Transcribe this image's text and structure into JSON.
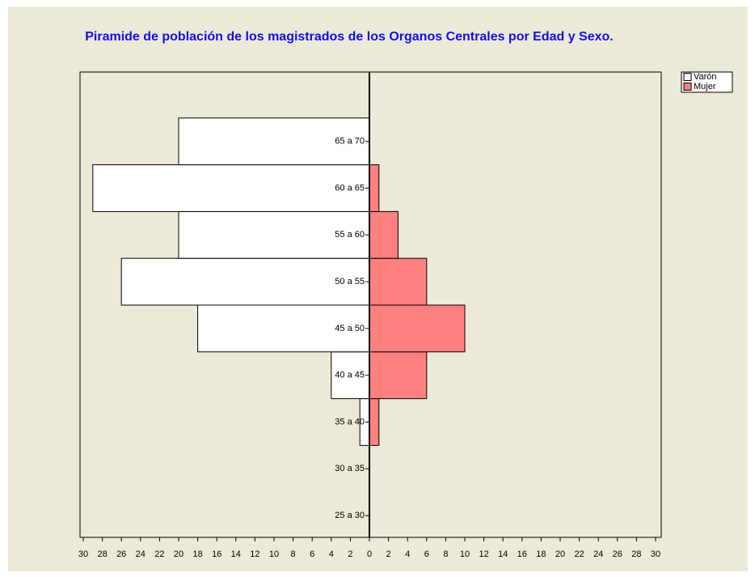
{
  "chart_data": {
    "type": "pyramid",
    "title": "Piramide de población de los magistrados de los Organos Centrales por Edad y Sexo.",
    "categories": [
      "25 a 30",
      "30  a 35",
      "35 a 40",
      "40 a 45",
      "45 a 50",
      "50 a 55",
      "55 a 60",
      "60 a 65",
      "65 a 70"
    ],
    "series": [
      {
        "name": "Varón",
        "color": "#ffffff",
        "values": [
          0,
          0,
          1,
          4,
          18,
          26,
          20,
          29,
          20
        ]
      },
      {
        "name": "Mujer",
        "color": "#ff8080",
        "values": [
          0,
          0,
          1,
          6,
          10,
          6,
          3,
          1,
          0
        ]
      }
    ],
    "xlim": [
      0,
      30
    ],
    "xticks": [
      0,
      2,
      4,
      6,
      8,
      10,
      12,
      14,
      16,
      18,
      20,
      22,
      24,
      26,
      28,
      30
    ],
    "legend": "upper right"
  }
}
